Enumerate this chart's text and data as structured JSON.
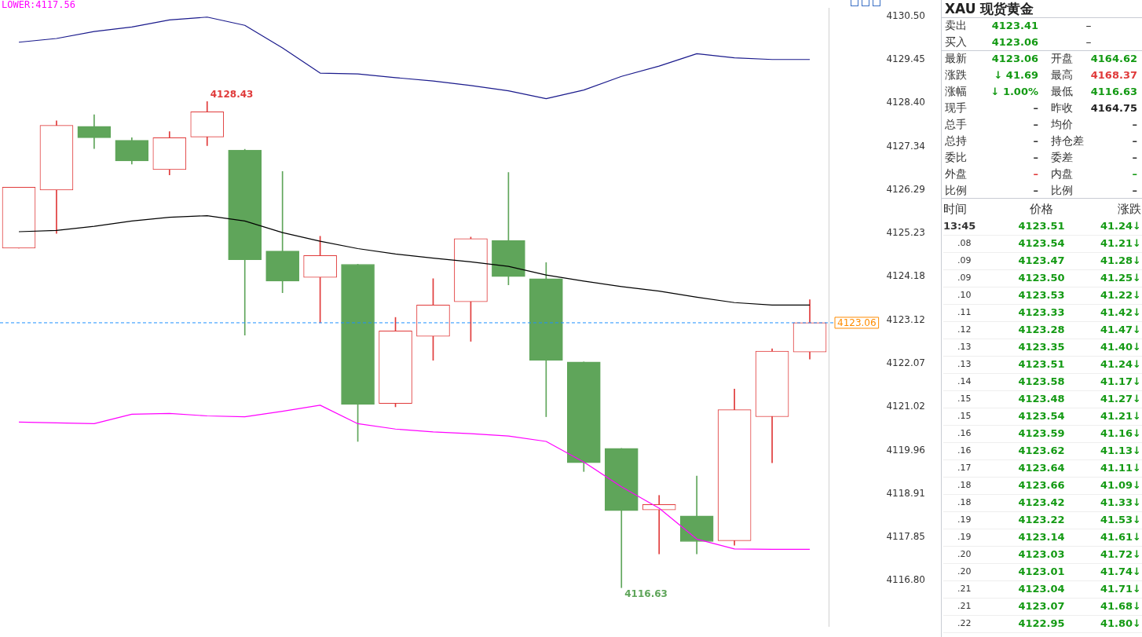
{
  "chart_data": [
    {
      "type": "candlestick",
      "categories": [
        null,
        null,
        null,
        null,
        null,
        null,
        null,
        null,
        null,
        null,
        null,
        null,
        null,
        null,
        null,
        null,
        null,
        null,
        null,
        null,
        null,
        null
      ],
      "ohlc": [
        [
          4124.87,
          4126.35,
          4124.87,
          4126.35
        ],
        [
          4126.28,
          4127.96,
          4125.23,
          4127.85
        ],
        [
          4127.83,
          4128.11,
          4127.29,
          4127.55
        ],
        [
          4127.49,
          4127.55,
          4126.91,
          4126.99
        ],
        [
          4126.78,
          4127.7,
          4126.65,
          4127.55
        ],
        [
          4127.57,
          4128.43,
          4127.36,
          4128.18
        ],
        [
          4127.25,
          4127.27,
          4122.76,
          4124.59
        ],
        [
          4124.8,
          4126.73,
          4123.79,
          4124.07
        ],
        [
          4124.16,
          4125.16,
          4123.06,
          4124.69
        ],
        [
          4124.48,
          4124.48,
          4120.18,
          4121.08
        ],
        [
          4121.1,
          4123.19,
          4121.02,
          4122.86
        ],
        [
          4122.73,
          4124.13,
          4122.15,
          4123.49
        ],
        [
          4123.57,
          4125.14,
          4122.61,
          4125.1
        ],
        [
          4125.06,
          4126.71,
          4123.98,
          4124.18
        ],
        [
          4124.13,
          4124.52,
          4120.78,
          4122.15
        ],
        [
          4122.11,
          4122.11,
          4119.45,
          4119.66
        ],
        [
          4120.01,
          4120.01,
          4116.63,
          4118.5
        ],
        [
          4118.52,
          4118.87,
          4117.45,
          4118.65
        ],
        [
          4118.37,
          4119.34,
          4117.45,
          4117.75
        ],
        [
          4117.77,
          4121.45,
          4117.66,
          4120.95
        ],
        [
          4120.78,
          4122.43,
          4119.66,
          4122.37
        ],
        [
          4122.35,
          4123.62,
          4122.18,
          4123.06
        ]
      ],
      "colors": [
        "#e03a3a",
        "#e03a3a",
        "#5fa55a",
        "#5fa55a",
        "#e03a3a",
        "#e03a3a",
        "#5fa55a",
        "#5fa55a",
        "#e03a3a",
        "#5fa55a",
        "#e03a3a",
        "#e03a3a",
        "#e03a3a",
        "#5fa55a",
        "#5fa55a",
        "#5fa55a",
        "#5fa55a",
        "#e03a3a",
        "#5fa55a",
        "#e03a3a",
        "#e03a3a",
        "#e03a3a"
      ],
      "series": [
        {
          "type": "line",
          "color": "#1a1a8c",
          "values": [
            4129.87,
            4129.96,
            4130.13,
            4130.24,
            4130.41,
            4130.48,
            4130.28,
            4129.73,
            4129.12,
            4129.1,
            4129.01,
            4128.93,
            4128.82,
            4128.69,
            4128.5,
            4128.71,
            4129.04,
            4129.29,
            4129.59,
            4129.49,
            4129.45,
            4129.45
          ]
        },
        {
          "type": "line",
          "color": "#000000",
          "values": [
            4125.27,
            4125.3,
            4125.4,
            4125.53,
            4125.62,
            4125.66,
            4125.53,
            4125.25,
            4125.04,
            4124.86,
            4124.73,
            4124.63,
            4124.54,
            4124.43,
            4124.22,
            4124.07,
            4123.94,
            4123.83,
            4123.68,
            4123.55,
            4123.49,
            4123.49
          ]
        },
        {
          "type": "line",
          "color": "#ff00ff",
          "values": [
            4120.65,
            4120.63,
            4120.61,
            4120.84,
            4120.86,
            4120.8,
            4120.78,
            4120.91,
            4121.06,
            4120.61,
            4120.48,
            4120.41,
            4120.37,
            4120.31,
            4120.18,
            4119.68,
            4119.08,
            4118.56,
            4117.81,
            4117.57,
            4117.56,
            4117.56
          ]
        }
      ],
      "ylim": [
        4115.7,
        4130.7
      ],
      "yticks": [
        {
          "value": 4116.8,
          "label": "4116.80"
        },
        {
          "value": 4117.85,
          "label": "4117.85"
        },
        {
          "value": 4118.91,
          "label": "4118.91"
        },
        {
          "value": 4119.96,
          "label": "4119.96"
        },
        {
          "value": 4121.02,
          "label": "4121.02"
        },
        {
          "value": 4122.07,
          "label": "4122.07"
        },
        {
          "value": 4123.12,
          "label": "4123.12"
        },
        {
          "value": 4124.18,
          "label": "4124.18"
        },
        {
          "value": 4125.23,
          "label": "4125.23"
        },
        {
          "value": 4126.29,
          "label": "4126.29"
        },
        {
          "value": 4127.34,
          "label": "4127.34"
        },
        {
          "value": 4128.4,
          "label": "4128.40"
        },
        {
          "value": 4129.45,
          "label": "4129.45"
        },
        {
          "value": 4130.5,
          "label": "4130.50"
        }
      ],
      "ref_lines": [
        {
          "axis": "y",
          "value": 4123.06,
          "label": "4123.06",
          "color": "#1e90ff",
          "line_style": "dashed"
        }
      ],
      "annotations": [
        "LOWER:4117.56",
        "4128.43",
        "4116.63"
      ],
      "tick_labels": "y",
      "legend": false,
      "grid": false
    },
    {
      "type": "other",
      "title": "XAU 现货黄金",
      "annotations": [
        "卖出",
        "4123.41",
        "–",
        "买入",
        "4123.06",
        "–",
        "最新",
        "4123.06",
        "开盘",
        "4164.62",
        "涨跌",
        "↓ 41.69",
        "最高",
        "4168.37",
        "涨幅",
        "↓ 1.00%",
        "最低",
        "4116.63",
        "现手",
        "–",
        "昨收",
        "4164.75",
        "总手",
        "–",
        "均价",
        "–",
        "总持",
        "–",
        "持仓差",
        "–",
        "委比",
        "–",
        "委差",
        "–",
        "外盘",
        "–",
        "内盘",
        "–",
        "比例",
        "–",
        "比例",
        "–"
      ],
      "colors": [
        "#333333",
        "#149a14",
        "#333333",
        "#333333",
        "#149a14",
        "#333333",
        "#333333",
        "#149a14",
        "#333333",
        "#149a14",
        "#333333",
        "#149a14",
        "#333333",
        "#e03a3a",
        "#333333",
        "#149a14",
        "#333333",
        "#149a14",
        "#333333",
        "#333333",
        "#333333",
        "#222222",
        "#333333",
        "#333333",
        "#333333",
        "#333333",
        "#333333",
        "#333333",
        "#333333",
        "#333333",
        "#333333",
        "#333333",
        "#333333",
        "#333333",
        "#333333",
        "#e03a3a",
        "#333333",
        "#149a14",
        "#333333",
        "#333333",
        "#333333",
        "#333333"
      ]
    },
    {
      "type": "other",
      "color": "#149a14",
      "annotations": [
        "时间",
        "价格",
        "涨跌",
        "13:45",
        "4123.51",
        "41.24↓",
        ".08",
        "4123.54",
        "41.21↓",
        ".09",
        "4123.47",
        "41.28↓",
        ".09",
        "4123.50",
        "41.25↓",
        ".10",
        "4123.53",
        "41.22↓",
        ".11",
        "4123.33",
        "41.42↓",
        ".12",
        "4123.28",
        "41.47↓",
        ".13",
        "4123.35",
        "41.40↓",
        ".13",
        "4123.51",
        "41.24↓",
        ".14",
        "4123.58",
        "41.17↓",
        ".15",
        "4123.48",
        "41.27↓",
        ".15",
        "4123.54",
        "41.21↓",
        ".16",
        "4123.59",
        "41.16↓",
        ".16",
        "4123.62",
        "41.13↓",
        ".17",
        "4123.64",
        "41.11↓",
        ".18",
        "4123.66",
        "41.09↓",
        ".18",
        "4123.42",
        "41.33↓",
        ".19",
        "4123.22",
        "41.53↓",
        ".19",
        "4123.14",
        "41.61↓",
        ".20",
        "4123.03",
        "41.72↓",
        ".20",
        "4123.01",
        "41.74↓",
        ".21",
        "4123.04",
        "41.71↓",
        ".21",
        "4123.07",
        "41.68↓",
        ".22",
        "4122.95",
        "41.80↓"
      ]
    }
  ]
}
